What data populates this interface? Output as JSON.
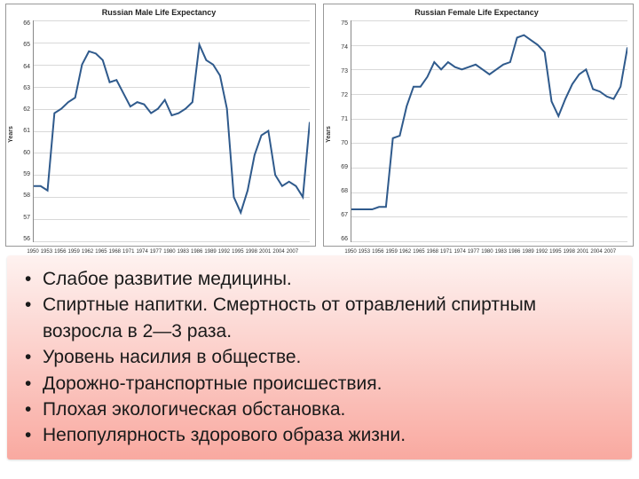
{
  "charts": [
    {
      "title": "Russian Male Life Expectancy",
      "ylabel": "Years",
      "ymin": 56,
      "ymax": 66,
      "ytick_step": 1,
      "xticks": [
        "1950",
        "1953",
        "1956",
        "1959",
        "1962",
        "1965",
        "1968",
        "1971",
        "1974",
        "1977",
        "1980",
        "1983",
        "1986",
        "1989",
        "1992",
        "1995",
        "1998",
        "2001",
        "2004",
        "2007"
      ],
      "line_color": "#2f5a8c",
      "line_width": 2,
      "grid_color": "#d8d8d8",
      "values": [
        58.5,
        58.5,
        58.3,
        61.8,
        62.0,
        62.3,
        62.5,
        64.0,
        64.6,
        64.5,
        64.2,
        63.2,
        63.3,
        62.7,
        62.1,
        62.3,
        62.2,
        61.8,
        62.0,
        62.4,
        61.7,
        61.8,
        62.0,
        62.3,
        64.9,
        64.2,
        64.0,
        63.5,
        62.0,
        58.0,
        57.3,
        58.3,
        59.9,
        60.8,
        61.0,
        59.0,
        58.5,
        58.7,
        58.5,
        58.0,
        61.4
      ],
      "x_count": 41
    },
    {
      "title": "Russian Female Life Expectancy",
      "ylabel": "Years",
      "ymin": 66,
      "ymax": 75,
      "ytick_step": 1,
      "xticks": [
        "1950",
        "1953",
        "1956",
        "1959",
        "1962",
        "1965",
        "1968",
        "1971",
        "1974",
        "1977",
        "1980",
        "1983",
        "1986",
        "1989",
        "1992",
        "1995",
        "1998",
        "2001",
        "2004",
        "2007"
      ],
      "line_color": "#2f5a8c",
      "line_width": 2,
      "grid_color": "#d8d8d8",
      "values": [
        67.3,
        67.3,
        67.3,
        67.3,
        67.4,
        67.4,
        70.2,
        70.3,
        71.5,
        72.3,
        72.3,
        72.7,
        73.3,
        73.0,
        73.3,
        73.1,
        73.0,
        73.1,
        73.2,
        73.0,
        72.8,
        73.0,
        73.2,
        73.3,
        74.3,
        74.4,
        74.2,
        74.0,
        73.7,
        71.7,
        71.1,
        71.8,
        72.4,
        72.8,
        73.0,
        72.2,
        72.1,
        71.9,
        71.8,
        72.3,
        73.9
      ],
      "x_count": 41
    }
  ],
  "bullets": [
    "Слабое развитие медицины.",
    "Спиртные напитки. Смертность от отравлений спиртным возросла в 2—3 раза.",
    " Уровень насилия в обществе.",
    "Дорожно-транспортные происшествия.",
    "Плохая экологическая обстановка.",
    "Непопулярность здорового образа жизни."
  ],
  "panel_gradient": {
    "top": "#fef2f0",
    "bottom": "#f9a9a0"
  },
  "bullet_font_size": 21,
  "bullet_color": "#1a1a1a"
}
